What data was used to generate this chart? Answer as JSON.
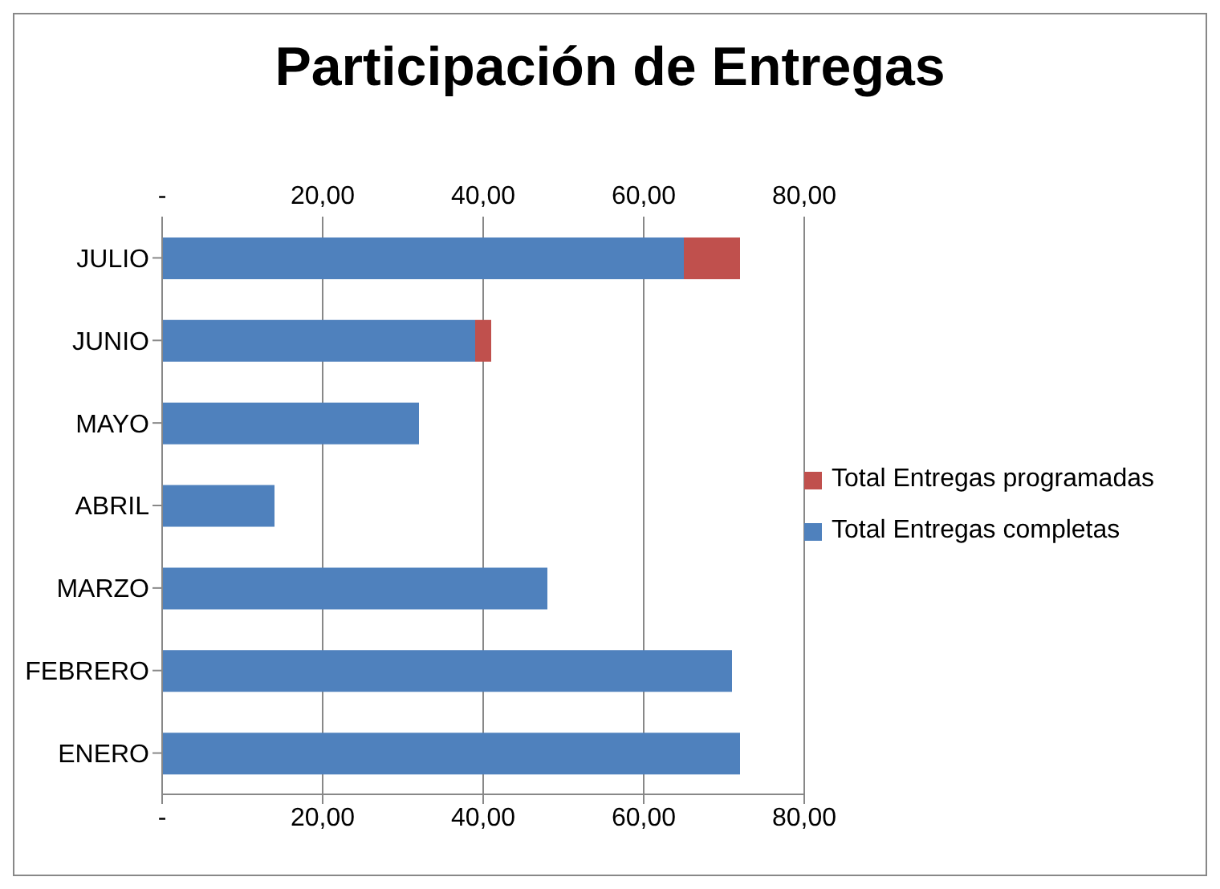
{
  "chart_data": {
    "type": "bar",
    "title": "Participación de Entregas",
    "orientation": "horizontal",
    "stacked": true,
    "categories": [
      "JULIO",
      "JUNIO",
      "MAYO",
      "ABRIL",
      "MARZO",
      "FEBRERO",
      "ENERO"
    ],
    "series": [
      {
        "name": "Total Entregas completas",
        "color": "#4f81bd",
        "values": [
          65,
          39,
          32,
          14,
          48,
          71,
          72
        ]
      },
      {
        "name": "Total Entregas programadas",
        "color": "#c0504d",
        "values": [
          7,
          2,
          null,
          null,
          null,
          null,
          null
        ]
      }
    ],
    "xlim": [
      0,
      80
    ],
    "xticks": [
      {
        "value": 0,
        "label": "-"
      },
      {
        "value": 20,
        "label": "20,00"
      },
      {
        "value": 40,
        "label": "40,00"
      },
      {
        "value": 60,
        "label": "60,00"
      },
      {
        "value": 80,
        "label": "80,00"
      }
    ],
    "x2lim": [
      0,
      80
    ],
    "x2ticks": [
      {
        "value": 0,
        "label": "-"
      },
      {
        "value": 20,
        "label": "20,00"
      },
      {
        "value": 40,
        "label": "40,00"
      },
      {
        "value": 60,
        "label": "60,00"
      },
      {
        "value": 80,
        "label": "80,00"
      }
    ],
    "grid": "x",
    "legend": "right"
  }
}
